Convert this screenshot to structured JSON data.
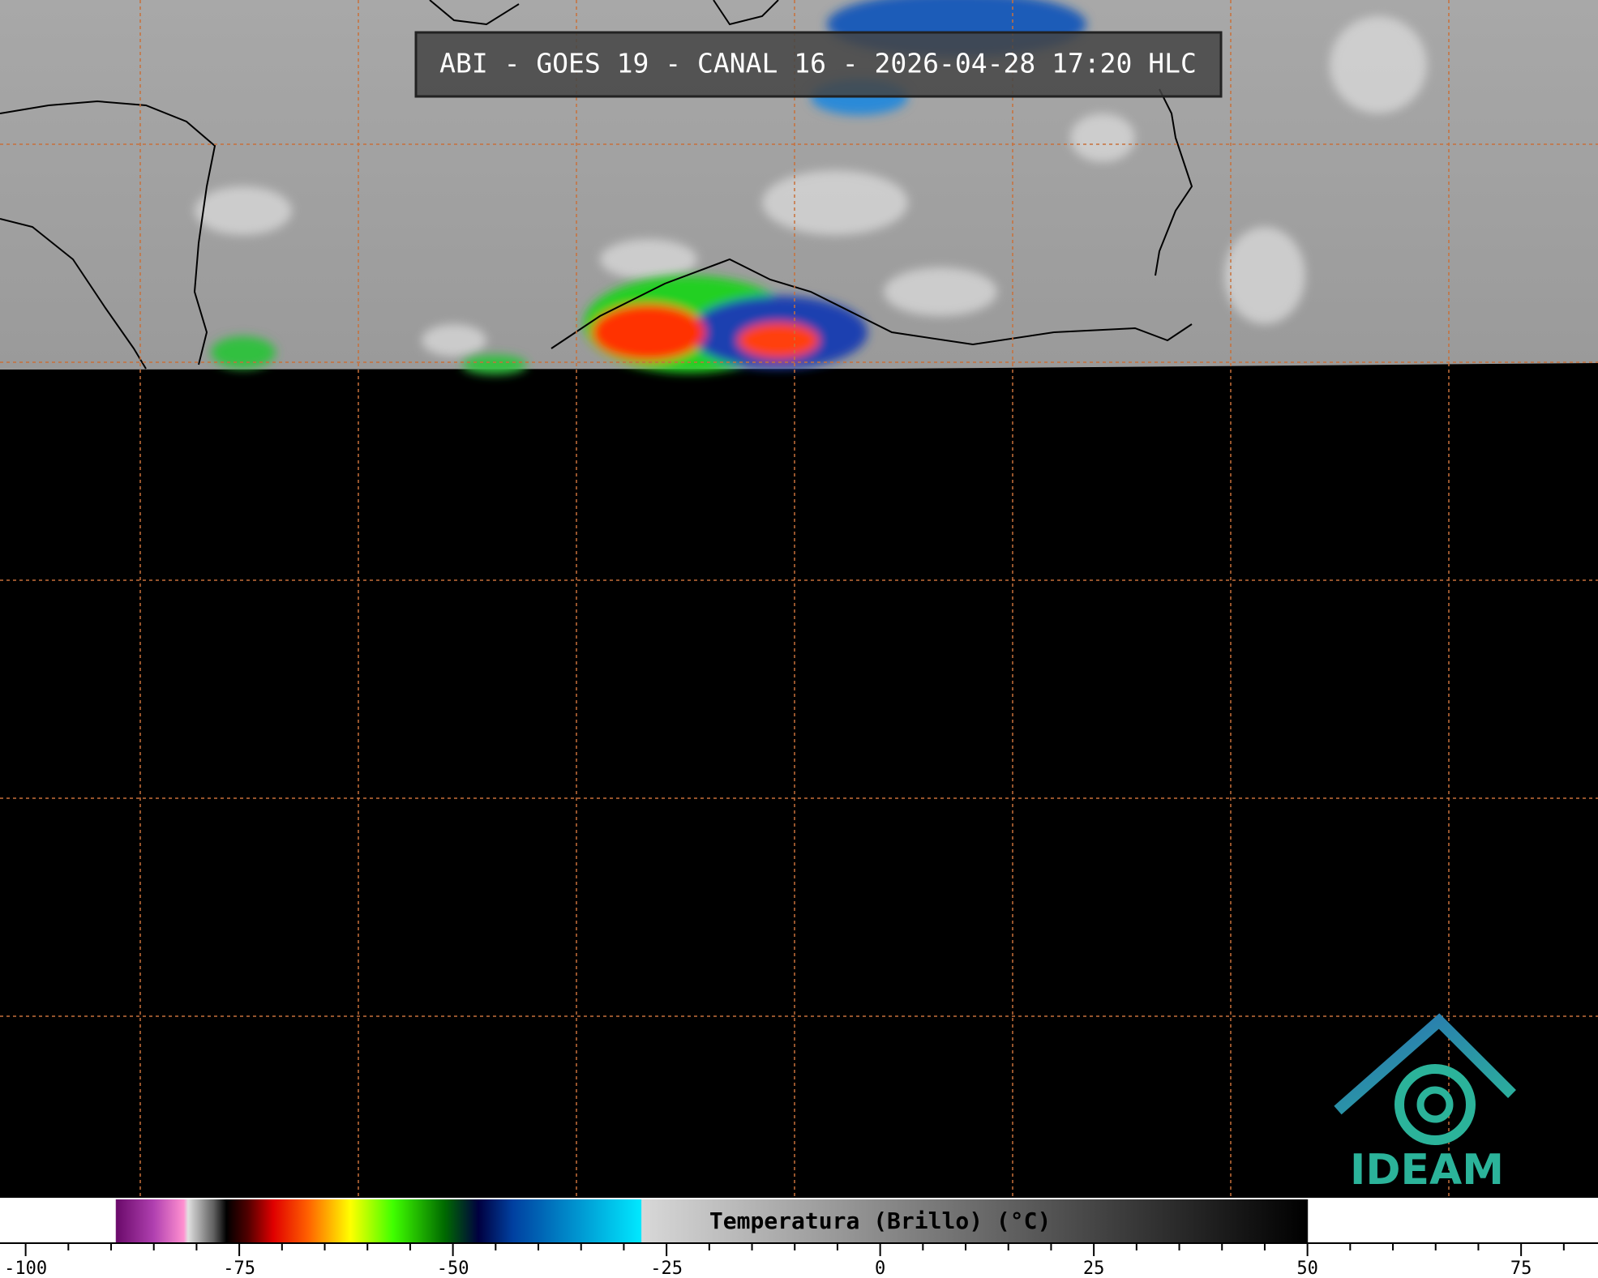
{
  "header": {
    "title": "ABI - GOES 19 - CANAL 16 - 2026-04-28 17:20 HLC"
  },
  "logo": {
    "text": "IDEAM"
  },
  "colorbar": {
    "label": "Temperatura (Brillo) (°C)",
    "range": [
      -103,
      84
    ],
    "ticks": [
      -100,
      -75,
      -50,
      -25,
      0,
      25,
      50,
      75
    ],
    "minor_ticks": [
      -95,
      -90,
      -85,
      -80,
      -70,
      -65,
      -60,
      -55,
      -45,
      -40,
      -35,
      -30,
      -20,
      -15,
      -10,
      -5,
      5,
      10,
      15,
      20,
      30,
      35,
      40,
      45,
      55,
      60,
      65,
      70,
      80
    ],
    "colormap": [
      {
        "value": -103,
        "color": "#ffffff"
      },
      {
        "value": -89.5,
        "color": "#ffffff"
      },
      {
        "value": -89.4,
        "color": "#6a0a6a"
      },
      {
        "value": -85,
        "color": "#b040b0"
      },
      {
        "value": -81.5,
        "color": "#ff90d0"
      },
      {
        "value": -81,
        "color": "#e0e0e0"
      },
      {
        "value": -78,
        "color": "#606060"
      },
      {
        "value": -76.5,
        "color": "#000000"
      },
      {
        "value": -74,
        "color": "#500000"
      },
      {
        "value": -71,
        "color": "#e00000"
      },
      {
        "value": -67,
        "color": "#ff6000"
      },
      {
        "value": -62,
        "color": "#ffff00"
      },
      {
        "value": -57,
        "color": "#40ff00"
      },
      {
        "value": -51,
        "color": "#006a00"
      },
      {
        "value": -47,
        "color": "#000040"
      },
      {
        "value": -43,
        "color": "#0040a0"
      },
      {
        "value": -28,
        "color": "#00e8ff"
      },
      {
        "value": -27.9,
        "color": "#d8d8d8"
      },
      {
        "value": 50,
        "color": "#000000"
      },
      {
        "value": 50.1,
        "color": "#ffffff"
      },
      {
        "value": 84,
        "color": "#ffffff"
      }
    ]
  }
}
